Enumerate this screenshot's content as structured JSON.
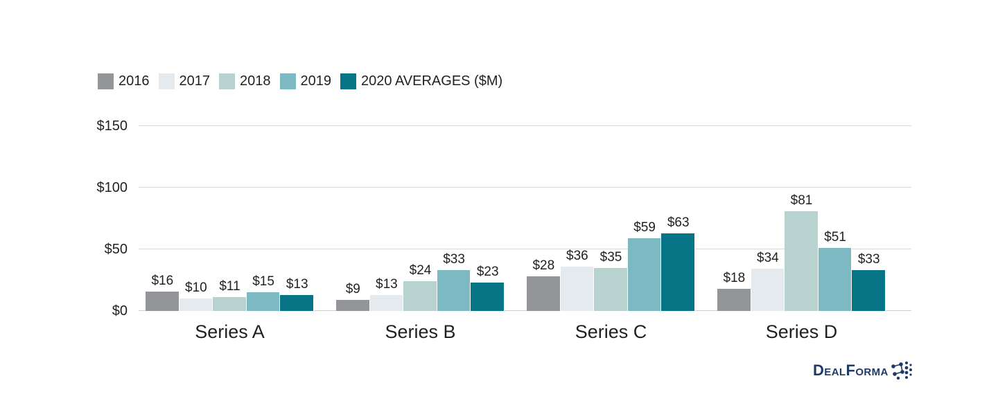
{
  "page": {
    "background_color": "#ffffff",
    "text_color": "#231f20",
    "gridline_color": "#d9d9d9"
  },
  "chart_data": {
    "type": "bar",
    "title": "",
    "categories": [
      "Series A",
      "Series B",
      "Series C",
      "Series D"
    ],
    "series": [
      {
        "name": "2016",
        "color": "#939598",
        "values": [
          16,
          9,
          28,
          18
        ]
      },
      {
        "name": "2017",
        "color": "#e5eaee",
        "values": [
          10,
          13,
          36,
          34
        ]
      },
      {
        "name": "2018",
        "color": "#b8d2d0",
        "values": [
          11,
          24,
          35,
          81
        ]
      },
      {
        "name": "2019",
        "color": "#7db9c2",
        "values": [
          15,
          33,
          59,
          51
        ]
      },
      {
        "name": "2020 AVERAGES ($M)",
        "color": "#077585",
        "values": [
          13,
          23,
          63,
          33
        ]
      }
    ],
    "value_prefix": "$",
    "value_labels": true,
    "ylim": [
      0,
      150
    ],
    "yticks": [
      0,
      50,
      100,
      150
    ],
    "ytick_labels": [
      "$0",
      "$50",
      "$100",
      "$150"
    ],
    "grid": true,
    "legend_position": "top-left"
  },
  "logo": {
    "brand": "DealForma",
    "color": "#1e3a68"
  }
}
